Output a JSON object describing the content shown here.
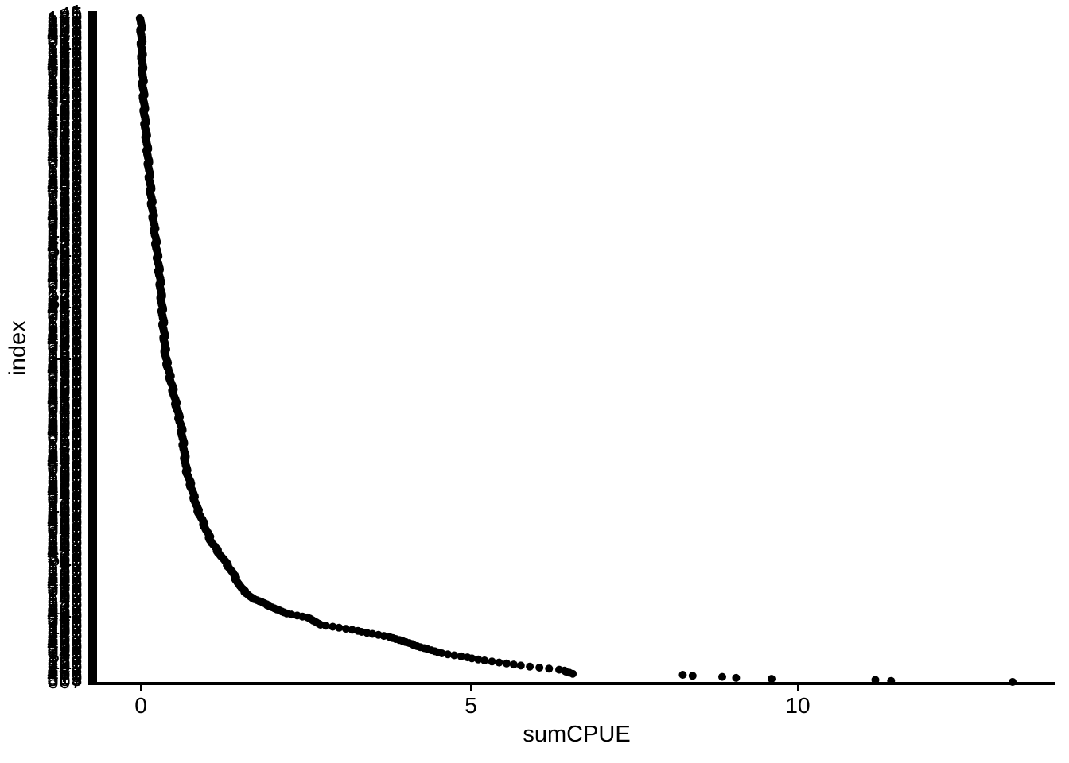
{
  "colors": {
    "background": "#ffffff",
    "foreground": "#000000"
  },
  "chart_data": {
    "type": "scatter",
    "title": "",
    "xlabel": "sumCPUE",
    "ylabel": "index",
    "x_ticks": [
      0,
      5,
      10
    ],
    "x_axis_range_shown": [
      -0.7,
      13.9
    ],
    "grid": false,
    "legend": false,
    "point_shape": "filled-circle",
    "point_color": "#000000",
    "n_points": 650,
    "y_axis_description": "one tick and numeric row-index label per point; hundreds of labels overlap into three solid digit columns and the tick marks merge into a solid bar",
    "largest_values_ascending": [
      8.25,
      8.4,
      8.85,
      9.06,
      9.6,
      11.18,
      11.42,
      13.27
    ],
    "curve_anchors": [
      [
        0.0,
        0.0
      ],
      [
        0.092,
        0.03
      ],
      [
        0.152,
        0.06
      ],
      [
        0.272,
        0.16
      ],
      [
        0.392,
        0.29
      ],
      [
        0.511,
        0.38
      ],
      [
        0.619,
        0.62
      ],
      [
        0.679,
        0.69
      ],
      [
        0.739,
        0.86
      ],
      [
        0.79,
        1.08
      ],
      [
        0.831,
        1.37
      ],
      [
        0.859,
        1.53
      ],
      [
        0.874,
        1.7
      ],
      [
        0.889,
        2.04
      ],
      [
        0.897,
        2.22
      ],
      [
        0.904,
        2.58
      ],
      [
        0.914,
        2.74
      ],
      [
        0.922,
        3.24
      ],
      [
        0.932,
        3.78
      ],
      [
        0.943,
        4.12
      ],
      [
        0.957,
        4.58
      ],
      [
        0.968,
        5.27
      ],
      [
        0.976,
        5.83
      ],
      [
        0.982,
        6.4
      ],
      [
        0.988,
        6.6
      ]
    ]
  }
}
